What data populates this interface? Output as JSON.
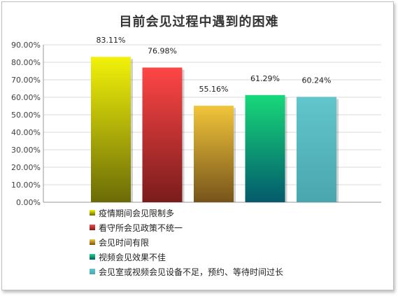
{
  "chart_data": {
    "type": "bar",
    "title": "目前会见过程中遇到的困难",
    "categories": [
      "疫情期间会见限制多",
      "看守所会见政策不统一",
      "会见时间有限",
      "视频会见效果不佳",
      "会见室或视频会见设备不足，预约、等待时间过长"
    ],
    "values": [
      83.11,
      76.98,
      55.16,
      61.29,
      60.24
    ],
    "value_labels": [
      "83.11%",
      "76.98%",
      "55.16%",
      "61.29%",
      "60.24%"
    ],
    "y_ticks": [
      "0.00%",
      "10.00%",
      "20.00%",
      "30.00%",
      "40.00%",
      "50.00%",
      "60.00%",
      "70.00%",
      "80.00%",
      "90.00%"
    ],
    "ylim": [
      0,
      90
    ],
    "grid": true,
    "legend_position": "bottom",
    "colors": [
      {
        "top": "#f2f20a",
        "bottom": "#6b6b08"
      },
      {
        "top": "#ff4646",
        "bottom": "#7a1c1c"
      },
      {
        "top": "#f2c53a",
        "bottom": "#76541a"
      },
      {
        "top": "#18d87a",
        "bottom": "#035a6c"
      },
      {
        "top": "#62c6cc",
        "bottom": "#4aa6ae"
      }
    ],
    "xlabel": "",
    "ylabel": ""
  }
}
